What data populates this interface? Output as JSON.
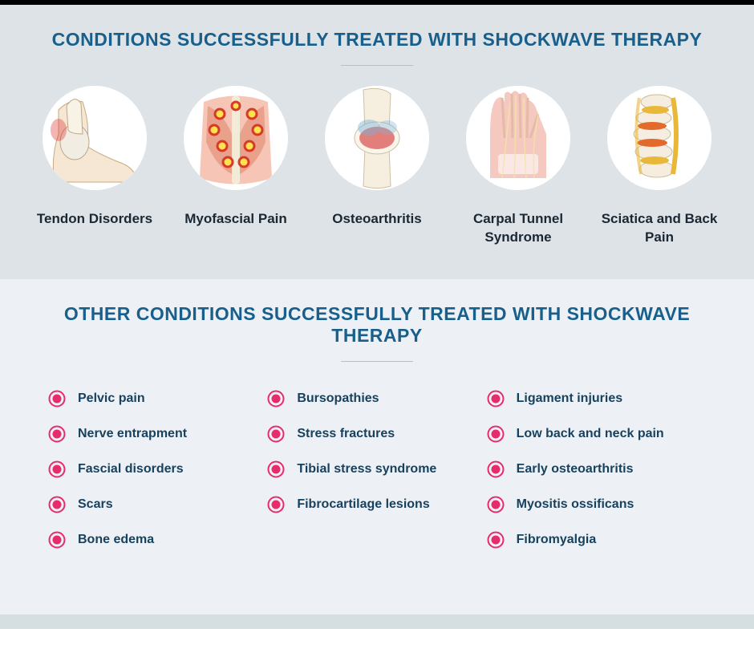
{
  "colors": {
    "heading": "#185f8c",
    "section_upper_bg": "#dde3e7",
    "section_lower_bg": "#edf1f5",
    "bullet_fill": "#e72c6b",
    "bullet_ring": "#e72c6b",
    "item_text": "#18415e",
    "card_text": "#1b2733",
    "divider": "#b8c0c6"
  },
  "top": {
    "title": "CONDITIONS SUCCESSFULLY TREATED WITH SHOCKWAVE THERAPY",
    "cards": [
      {
        "label": "Tendon Disorders",
        "icon": "ankle-joint-icon"
      },
      {
        "label": "Myofascial Pain",
        "icon": "back-muscle-icon"
      },
      {
        "label": "Osteoarthritis",
        "icon": "knee-joint-icon"
      },
      {
        "label": "Carpal Tunnel Syndrome",
        "icon": "hand-wrist-icon"
      },
      {
        "label": "Sciatica and Back Pain",
        "icon": "spine-icon"
      }
    ]
  },
  "bottom": {
    "title": "OTHER CONDITIONS SUCCESSFULLY TREATED WITH SHOCKWAVE THERAPY",
    "columns": [
      [
        "Pelvic pain",
        "Nerve entrapment",
        "Fascial disorders",
        "Scars",
        "Bone edema"
      ],
      [
        "Bursopathies",
        "Stress fractures",
        "Tibial stress syndrome",
        "Fibrocartilage lesions"
      ],
      [
        "Ligament injuries",
        "Low back and neck pain",
        "Early osteoarthritis",
        "Myositis ossificans",
        "Fibromyalgia"
      ]
    ]
  }
}
